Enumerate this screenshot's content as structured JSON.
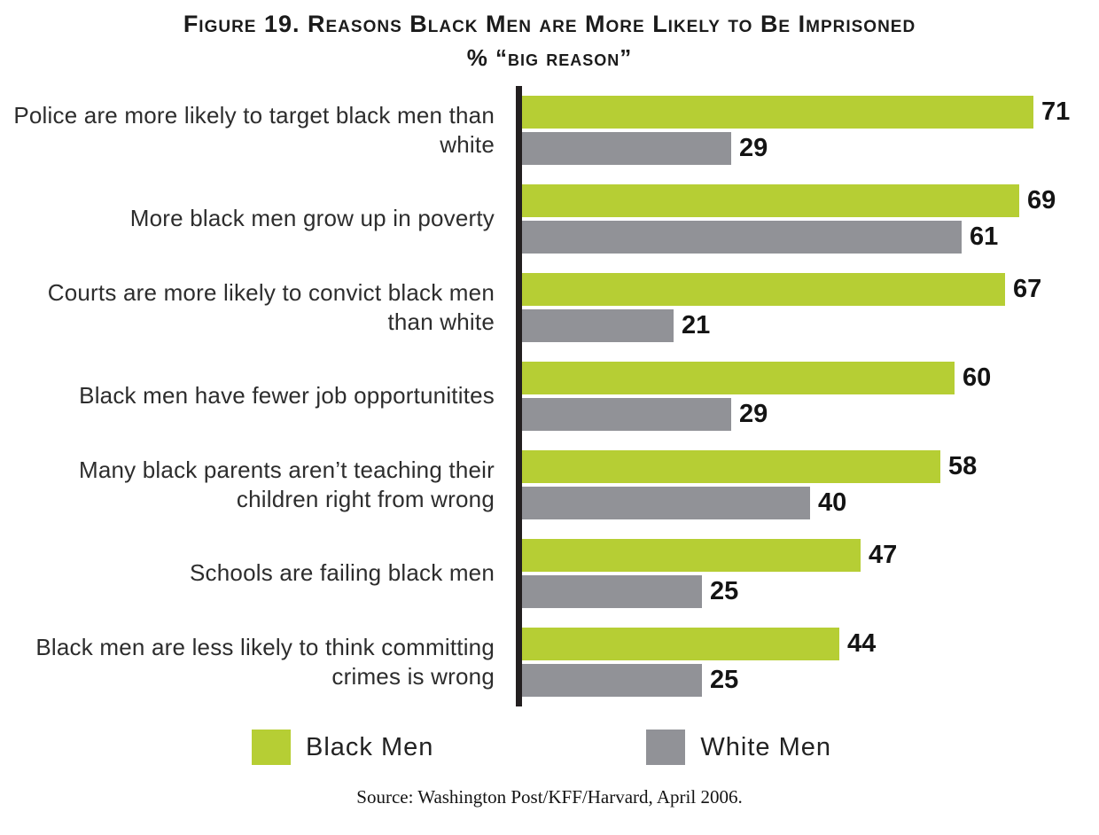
{
  "title": "Figure 19. Reasons Black Men are More Likely to Be Imprisoned",
  "subtitle": "% “big reason”",
  "legend": [
    {
      "label": "Black Men",
      "color": "#b6ce34"
    },
    {
      "label": "White Men",
      "color": "#919297"
    }
  ],
  "source": "Source: Washington Post/KFF/Harvard, April 2006.",
  "chart_data": {
    "type": "bar",
    "orientation": "horizontal",
    "title": "Figure 19. Reasons Black Men are More Likely to Be Imprisoned",
    "subtitle": "% “big reason”",
    "categories": [
      "Police are more likely to target black men than white",
      "More black men grow up in poverty",
      "Courts are more likely to convict black men than white",
      "Black men have fewer job opportunitites",
      "Many black parents aren’t teaching their children right from wrong",
      "Schools are failing black men",
      "Black men are less likely to think committing crimes is wrong"
    ],
    "series": [
      {
        "name": "Black Men",
        "color": "#b6ce34",
        "values": [
          71,
          69,
          67,
          60,
          58,
          47,
          44
        ]
      },
      {
        "name": "White Men",
        "color": "#919297",
        "values": [
          29,
          61,
          21,
          29,
          40,
          25,
          25
        ]
      }
    ],
    "xlim": [
      0,
      78
    ],
    "value_labels": true,
    "grid": false,
    "legend_position": "bottom",
    "axis_color": "#231f20"
  }
}
